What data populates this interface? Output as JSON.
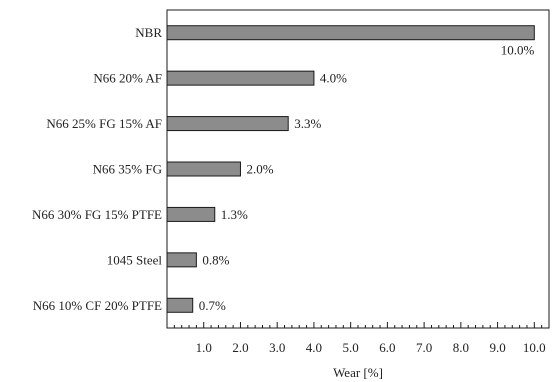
{
  "chart_data": {
    "type": "bar",
    "orientation": "horizontal",
    "categories": [
      "NBR",
      "N66 20% AF",
      "N66 25% FG 15% AF",
      "N66 35% FG",
      "N66 30% FG 15% PTFE",
      "1045 Steel",
      "N66 10% CF 20% PTFE"
    ],
    "values": [
      10.0,
      4.0,
      3.3,
      2.0,
      1.3,
      0.8,
      0.7
    ],
    "data_labels": [
      "10.0%",
      "4.0%",
      "3.3%",
      "2.0%",
      "1.3%",
      "0.8%",
      "0.7%"
    ],
    "xlabel": "Wear [%]",
    "ylabel": "",
    "title": "",
    "xlim": [
      0,
      10.4
    ],
    "x_ticks": [
      1.0,
      2.0,
      3.0,
      4.0,
      5.0,
      6.0,
      7.0,
      8.0,
      9.0,
      10.0
    ],
    "x_tick_labels": [
      "1.0",
      "2.0",
      "3.0",
      "4.0",
      "5.0",
      "6.0",
      "7.0",
      "8.0",
      "9.0",
      "10.0"
    ],
    "minor_tick_step": 0.2,
    "grid": false,
    "bar_color": "#8c8c8c",
    "bar_edge_color": "#1a1a1a"
  }
}
